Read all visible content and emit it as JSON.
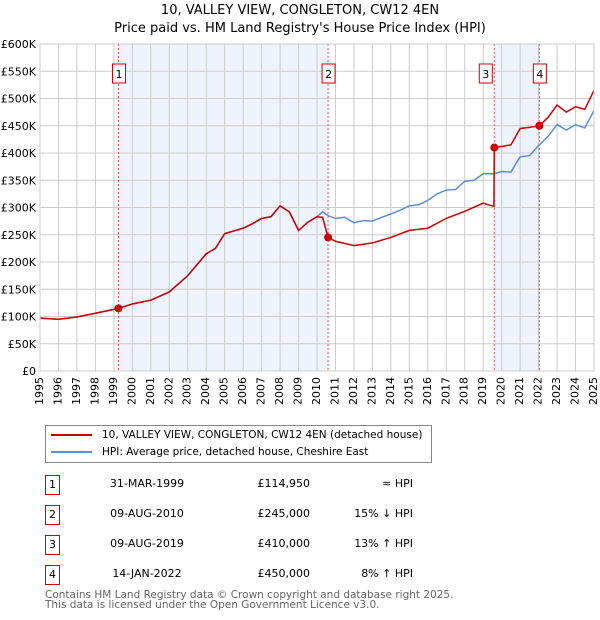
{
  "chart_data": {
    "type": "line",
    "title": "10, VALLEY VIEW, CONGLETON, CW12 4EN",
    "subtitle": "Price paid vs. HM Land Registry's House Price Index (HPI)",
    "xlim": [
      1995,
      2025
    ],
    "ylim": [
      0,
      600000
    ],
    "y_ticks": [
      "£0",
      "£50K",
      "£100K",
      "£150K",
      "£200K",
      "£250K",
      "£300K",
      "£350K",
      "£400K",
      "£450K",
      "£500K",
      "£550K",
      "£600K"
    ],
    "x_ticks": [
      "1995",
      "1996",
      "1997",
      "1998",
      "1999",
      "2000",
      "2001",
      "2002",
      "2003",
      "2004",
      "2005",
      "2006",
      "2007",
      "2008",
      "2009",
      "2010",
      "2011",
      "2012",
      "2013",
      "2014",
      "2015",
      "2016",
      "2017",
      "2018",
      "2019",
      "2020",
      "2021",
      "2022",
      "2023",
      "2024",
      "2025"
    ],
    "grid": true,
    "shaded_periods": [
      [
        1999.25,
        2010.6
      ],
      [
        2019.6,
        2022.04
      ]
    ],
    "series": [
      {
        "name": "HPI: Average price, detached house, Cheshire East",
        "color": "#5b8ed6",
        "x": [
          1995,
          1996,
          1997,
          1998,
          1999,
          1999.25,
          2000,
          2001,
          2002,
          2003,
          2003.5,
          2004,
          2004.5,
          2005,
          2006,
          2006.5,
          2007,
          2007.5,
          2008,
          2008.5,
          2009,
          2009.5,
          2010,
          2010.3,
          2010.6,
          2011,
          2011.5,
          2012,
          2012.5,
          2013,
          2013.5,
          2014,
          2014.5,
          2015,
          2015.5,
          2016,
          2016.5,
          2017,
          2017.5,
          2018,
          2018.5,
          2019,
          2019.6,
          2020,
          2020.5,
          2021,
          2021.5,
          2022.04,
          2022.5,
          2023,
          2023.5,
          2024,
          2024.5,
          2025
        ],
        "y": [
          97000,
          95000,
          99000,
          106000,
          113000,
          115000,
          123000,
          130000,
          145000,
          175000,
          195000,
          215000,
          225000,
          252000,
          262000,
          270000,
          280000,
          283000,
          303000,
          292000,
          258000,
          273000,
          283000,
          292000,
          285000,
          280000,
          282000,
          272000,
          276000,
          275000,
          282000,
          288000,
          295000,
          303000,
          305000,
          313000,
          325000,
          332000,
          333000,
          348000,
          350000,
          362000,
          362000,
          366000,
          365000,
          393000,
          395000,
          415000,
          430000,
          452000,
          442000,
          452000,
          446000,
          478000
        ]
      },
      {
        "name": "10, VALLEY VIEW, CONGLETON, CW12 4EN (detached house)",
        "color": "#cc0000",
        "x": [
          1995,
          1996,
          1997,
          1998,
          1999,
          1999.25,
          2000,
          2001,
          2002,
          2003,
          2003.5,
          2004,
          2004.5,
          2005,
          2006,
          2006.5,
          2007,
          2007.5,
          2008,
          2008.5,
          2009,
          2009.5,
          2010,
          2010.3,
          2010.6,
          2011,
          2012,
          2013,
          2014,
          2015,
          2016,
          2017,
          2018,
          2019,
          2019.58,
          2019.6,
          2020,
          2020.5,
          2021,
          2021.5,
          2022.04,
          2022.5,
          2023,
          2023.5,
          2024,
          2024.5,
          2025
        ],
        "y": [
          97000,
          95000,
          99000,
          106000,
          113000,
          114950,
          123000,
          130000,
          145000,
          175000,
          195000,
          215000,
          225000,
          252000,
          262000,
          270000,
          280000,
          283000,
          303000,
          292000,
          258000,
          273000,
          283000,
          282000,
          245000,
          238000,
          230000,
          235000,
          245000,
          258000,
          262000,
          280000,
          293000,
          308000,
          302000,
          410000,
          412000,
          415000,
          445000,
          447000,
          450000,
          465000,
          488000,
          475000,
          485000,
          480000,
          515000
        ]
      }
    ],
    "sales": [
      {
        "label": "1",
        "x": 1999.25,
        "price": 114950
      },
      {
        "label": "2",
        "x": 2010.6,
        "price": 245000
      },
      {
        "label": "3",
        "x": 2019.6,
        "price": 410000
      },
      {
        "label": "4",
        "x": 2022.04,
        "price": 450000
      }
    ]
  },
  "legend": {
    "property": "10, VALLEY VIEW, CONGLETON, CW12 4EN (detached house)",
    "hpi": "HPI: Average price, detached house, Cheshire East"
  },
  "table": [
    {
      "num": "1",
      "date": "31-MAR-1999",
      "price": "£114,950",
      "rel": "≈ HPI"
    },
    {
      "num": "2",
      "date": "09-AUG-2010",
      "price": "£245,000",
      "rel": "15% ↓ HPI"
    },
    {
      "num": "3",
      "date": "09-AUG-2019",
      "price": "£410,000",
      "rel": "13% ↑ HPI"
    },
    {
      "num": "4",
      "date": "14-JAN-2022",
      "price": "£450,000",
      "rel": "8% ↑ HPI"
    }
  ],
  "footer": {
    "line1": "Contains HM Land Registry data © Crown copyright and database right 2025.",
    "line2": "This data is licensed under the Open Government Licence v3.0."
  }
}
